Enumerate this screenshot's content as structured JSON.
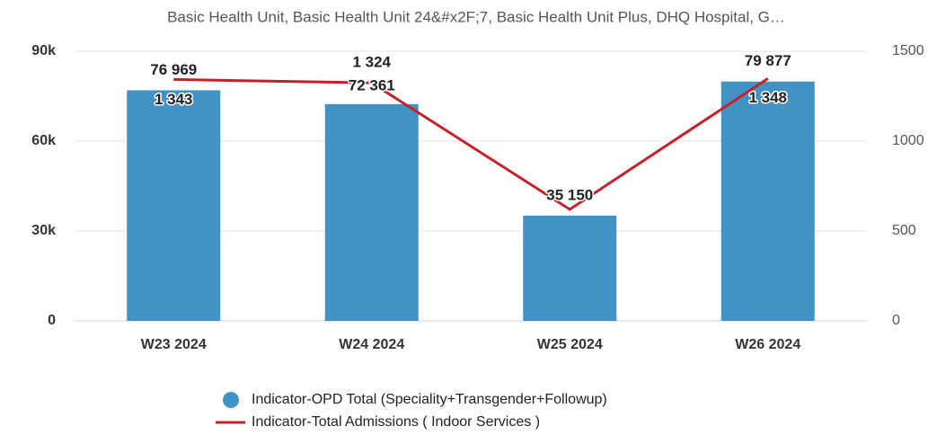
{
  "chart_data": {
    "type": "bar-line",
    "title": "Basic Health Unit, Basic Health Unit 24&#x2F;7, Basic Health Unit Plus, DHQ Hospital, G…",
    "categories": [
      "W23 2024",
      "W24 2024",
      "W25 2024",
      "W26 2024"
    ],
    "series": [
      {
        "name": "Indicator-OPD Total (Speciality+Transgender+Followup)",
        "type": "bar",
        "color": "#4292c6",
        "values": [
          76969,
          72361,
          35150,
          79877
        ],
        "value_labels": [
          "76 969",
          "72 361",
          "35 150",
          "79 877"
        ]
      },
      {
        "name": "Indicator-Total Admissions ( Indoor Services )",
        "type": "line",
        "color": "#c8202a",
        "axis": "y2",
        "values": [
          1343,
          1324,
          620,
          1348
        ],
        "value_labels": [
          "1 343",
          "1 324",
          null,
          "1 348"
        ]
      }
    ],
    "ylim": [
      0,
      90000
    ],
    "yticks": [
      0,
      {
        "value": 30000,
        "label": "30k"
      },
      {
        "value": 60000,
        "label": "60k"
      },
      {
        "value": 90000,
        "label": "90k"
      }
    ],
    "y2lim": [
      0,
      1500
    ],
    "y2ticks": [
      0,
      500,
      1000,
      1500
    ],
    "grid": true
  }
}
